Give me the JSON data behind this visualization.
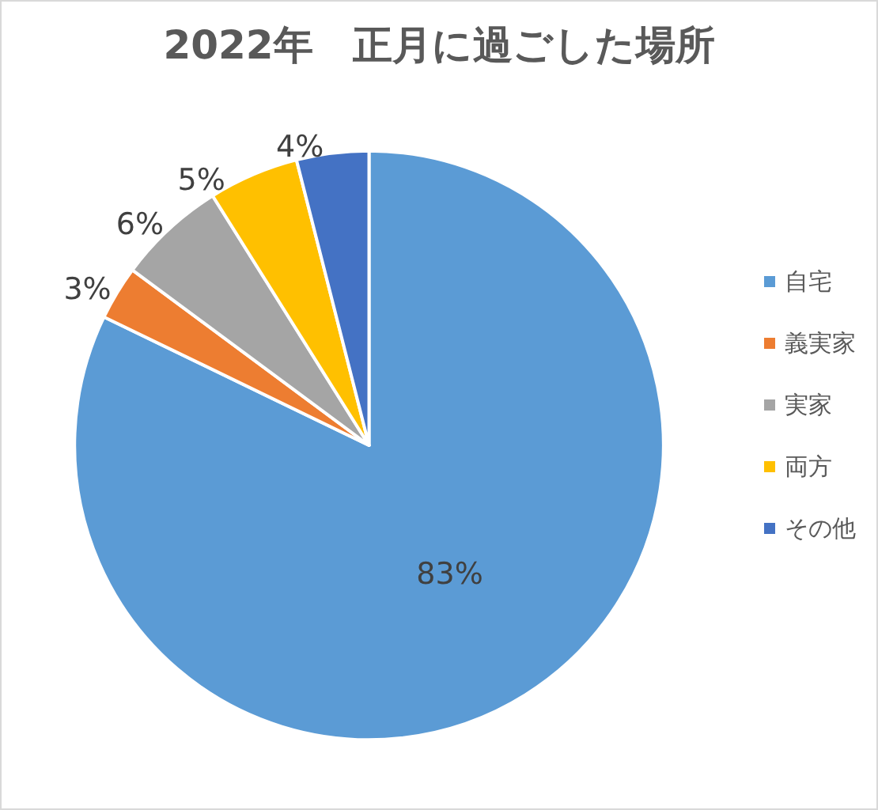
{
  "chart_data": {
    "type": "pie",
    "title": "2022年　正月に過ごした場所",
    "categories": [
      "自宅",
      "義実家",
      "実家",
      "両方",
      "その他"
    ],
    "values": [
      83,
      3,
      6,
      5,
      4
    ],
    "colors": [
      "#5b9bd5",
      "#ed7d31",
      "#a5a5a5",
      "#ffc000",
      "#4472c4"
    ],
    "value_labels": [
      "83%",
      "3%",
      "6%",
      "5%",
      "4%"
    ],
    "legend": "right"
  }
}
